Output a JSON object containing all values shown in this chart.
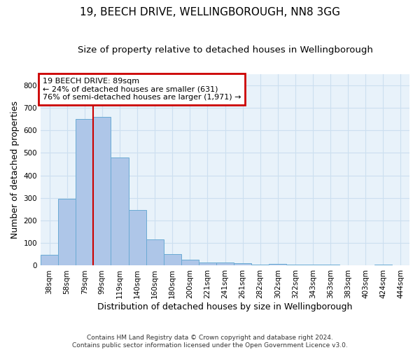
{
  "title_line1": "19, BEECH DRIVE, WELLINGBOROUGH, NN8 3GG",
  "title_line2": "Size of property relative to detached houses in Wellingborough",
  "xlabel": "Distribution of detached houses by size in Wellingborough",
  "ylabel": "Number of detached properties",
  "footnote": "Contains HM Land Registry data © Crown copyright and database right 2024.\nContains public sector information licensed under the Open Government Licence v3.0.",
  "categories": [
    "38sqm",
    "58sqm",
    "79sqm",
    "99sqm",
    "119sqm",
    "140sqm",
    "160sqm",
    "180sqm",
    "200sqm",
    "221sqm",
    "241sqm",
    "261sqm",
    "282sqm",
    "302sqm",
    "322sqm",
    "343sqm",
    "363sqm",
    "383sqm",
    "403sqm",
    "424sqm",
    "444sqm"
  ],
  "values": [
    47,
    295,
    651,
    660,
    478,
    248,
    115,
    52,
    26,
    15,
    14,
    10,
    5,
    8,
    6,
    4,
    4,
    2,
    2,
    5,
    2
  ],
  "bar_color": "#aec6e8",
  "bar_edge_color": "#6aaad4",
  "grid_color": "#ccdff0",
  "background_color": "#e8f2fa",
  "red_line_x": 2.5,
  "annotation_text": "19 BEECH DRIVE: 89sqm\n← 24% of detached houses are smaller (631)\n76% of semi-detached houses are larger (1,971) →",
  "annotation_box_color": "#ffffff",
  "annotation_border_color": "#cc0000",
  "ylim": [
    0,
    850
  ],
  "yticks": [
    0,
    100,
    200,
    300,
    400,
    500,
    600,
    700,
    800
  ],
  "title_fontsize": 11,
  "subtitle_fontsize": 9.5,
  "axis_label_fontsize": 9,
  "tick_fontsize": 7.5,
  "annotation_fontsize": 8
}
